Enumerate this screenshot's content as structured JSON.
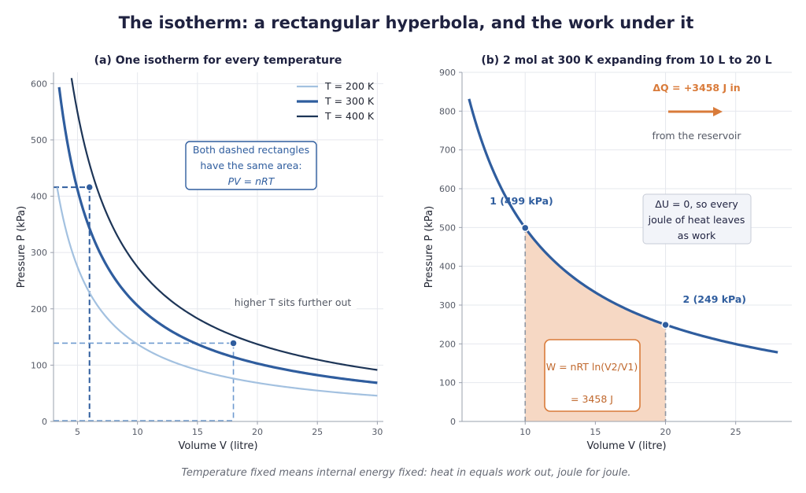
{
  "title": "The isotherm: a rectangular hyperbola, and the work under it",
  "footer": "Temperature fixed means internal energy fixed: heat in equals work out, joule for joule.",
  "colors": {
    "t200": "#a3c1e0",
    "t300": "#2f5d9e",
    "t400": "#1d3557",
    "accent": "#d97b3a",
    "fill": "#f6d8c4",
    "text_dark": "#1f2240"
  },
  "chart_data": [
    {
      "type": "line",
      "title": "(a) One isotherm for every temperature",
      "xlabel": "Volume V (litre)",
      "ylabel": "Pressure P (kPa)",
      "xlim": [
        3,
        30.5
      ],
      "ylim": [
        0,
        620
      ],
      "xticks": [
        5,
        10,
        15,
        20,
        25,
        30
      ],
      "yticks": [
        0,
        100,
        200,
        300,
        400,
        500,
        600
      ],
      "grid": true,
      "legend_position": "top-right",
      "series": [
        {
          "name": "T = 200 K",
          "color_key": "t200",
          "x": [
            3.3,
            4,
            5,
            6,
            8,
            10,
            12,
            15,
            18,
            20,
            25,
            30
          ],
          "y": [
            416,
            343,
            274,
            229,
            171,
            137,
            114,
            91,
            76,
            69,
            55,
            46
          ]
        },
        {
          "name": "T = 300 K",
          "color_key": "t300",
          "x": [
            3.3,
            4,
            5,
            6,
            8,
            10,
            12,
            15,
            18,
            20,
            25,
            30
          ],
          "y": [
            624,
            515,
            412,
            343,
            257,
            206,
            171,
            137,
            114,
            103,
            82,
            69
          ]
        },
        {
          "name": "T = 400 K",
          "color_key": "t400",
          "x": [
            4.5,
            5,
            6,
            8,
            10,
            12,
            15,
            18,
            20,
            25,
            30
          ],
          "y": [
            610,
            549,
            457,
            343,
            274,
            229,
            183,
            152,
            137,
            110,
            91
          ]
        }
      ],
      "points": [
        {
          "x": 6,
          "y": 416
        },
        {
          "x": 18,
          "y": 139
        }
      ],
      "rectangles": [
        {
          "x": 6,
          "y": 416
        },
        {
          "x": 18,
          "y": 139
        }
      ],
      "legend": [
        {
          "label": "T = 200 K",
          "color_key": "t200"
        },
        {
          "label": "T = 300 K",
          "color_key": "t300"
        },
        {
          "label": "T = 400 K",
          "color_key": "t400"
        }
      ],
      "annotations": {
        "box_line1": "Both dashed rectangles",
        "box_line2": "have the same area:",
        "box_line3": "PV = nRT",
        "further": "higher T sits further out"
      }
    },
    {
      "type": "area",
      "title": "(b) 2 mol at 300 K expanding from 10 L to 20 L",
      "xlabel": "Volume V (litre)",
      "ylabel": "Pressure P (kPa)",
      "xlim": [
        5.5,
        29
      ],
      "ylim": [
        0,
        900
      ],
      "xticks": [
        10,
        15,
        20,
        25
      ],
      "yticks": [
        0,
        100,
        200,
        300,
        400,
        500,
        600,
        700,
        800,
        900
      ],
      "grid": true,
      "series": [
        {
          "name": "",
          "color_key": "t300",
          "x": [
            6,
            7,
            8,
            10,
            12,
            14,
            16,
            18,
            20,
            22,
            24,
            26,
            28
          ],
          "y": [
            831,
            713,
            624,
            499,
            416,
            356,
            312,
            277,
            249,
            227,
            208,
            192,
            178
          ]
        }
      ],
      "shaded_region": {
        "x_from": 10,
        "x_to": 20
      },
      "points": [
        {
          "label": "1  (499 kPa)",
          "x": 10,
          "y": 499
        },
        {
          "label": "2  (249 kPa)",
          "x": 20,
          "y": 249
        }
      ],
      "annotations": {
        "heat": "ΔQ = +3458 J  in",
        "reservoir": "from the reservoir",
        "du_line1": "ΔU = 0, so every",
        "du_line2": "joule of heat leaves",
        "du_line3": "as work",
        "work_formula": "W = nRT ln(V2/V1)",
        "work_value": "= 3458 J"
      }
    }
  ]
}
